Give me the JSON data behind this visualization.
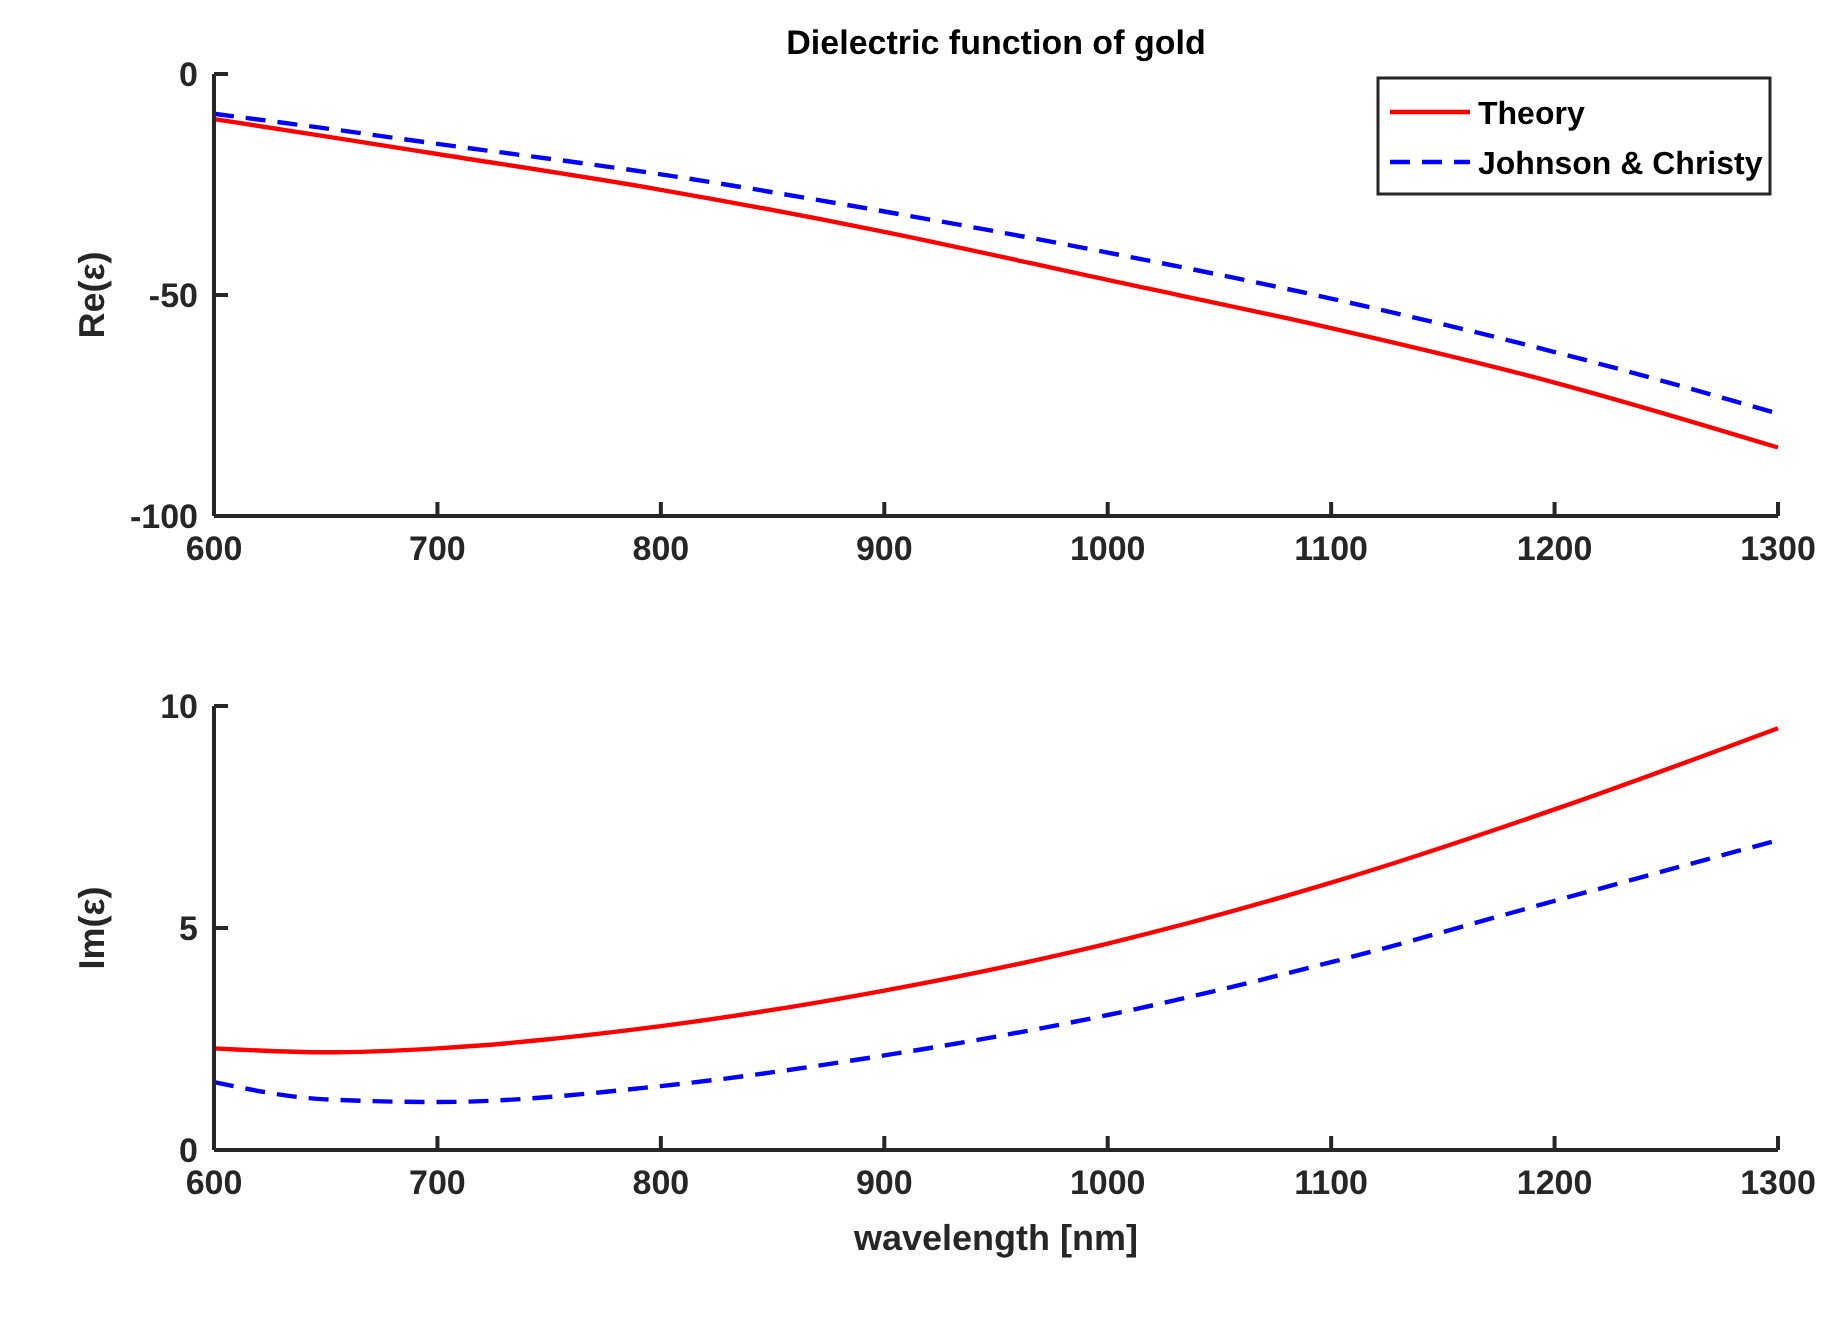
{
  "chart_data": [
    {
      "type": "line",
      "title": "Dielectric function of gold",
      "ylabel": "Re(ε)",
      "x": [
        600,
        650,
        700,
        800,
        900,
        1000,
        1100,
        1200,
        1300
      ],
      "xlim": [
        600,
        1300
      ],
      "xticks": [
        600,
        700,
        800,
        900,
        1000,
        1100,
        1200,
        1300
      ],
      "ylim": [
        -100,
        0
      ],
      "yticks": [
        -100,
        -50,
        0
      ],
      "legend": "top right",
      "grid": false,
      "series": [
        {
          "name": "Theory",
          "color": "#ff0000",
          "line_style": "solid",
          "values": [
            -10.2,
            -14.1,
            -18.1,
            -26.2,
            -35.7,
            -46.6,
            -57.5,
            -69.8,
            -84.5
          ]
        },
        {
          "name": "Johnson & Christy",
          "color": "#0000ff",
          "line_style": "dashed",
          "values": [
            -9.0,
            -12.3,
            -15.8,
            -22.7,
            -31.1,
            -40.4,
            -50.8,
            -62.9,
            -76.8
          ]
        }
      ]
    },
    {
      "type": "line",
      "xlabel": "wavelength [nm]",
      "ylabel": "Im(ε)",
      "x": [
        600,
        650,
        700,
        800,
        900,
        1000,
        1100,
        1200,
        1300
      ],
      "xlim": [
        600,
        1300
      ],
      "xticks": [
        600,
        700,
        800,
        900,
        1000,
        1100,
        1200,
        1300
      ],
      "ylim": [
        0,
        10
      ],
      "yticks": [
        0,
        5,
        10
      ],
      "legend": false,
      "grid": false,
      "series": [
        {
          "color": "#ff0000",
          "line_style": "solid",
          "values": [
            2.29,
            2.2,
            2.29,
            2.79,
            3.59,
            4.65,
            6.02,
            7.67,
            9.5
          ]
        },
        {
          "color": "#0000ff",
          "line_style": "dashed",
          "values": [
            1.53,
            1.14,
            1.08,
            1.44,
            2.13,
            3.04,
            4.23,
            5.61,
            6.98
          ]
        }
      ]
    }
  ]
}
